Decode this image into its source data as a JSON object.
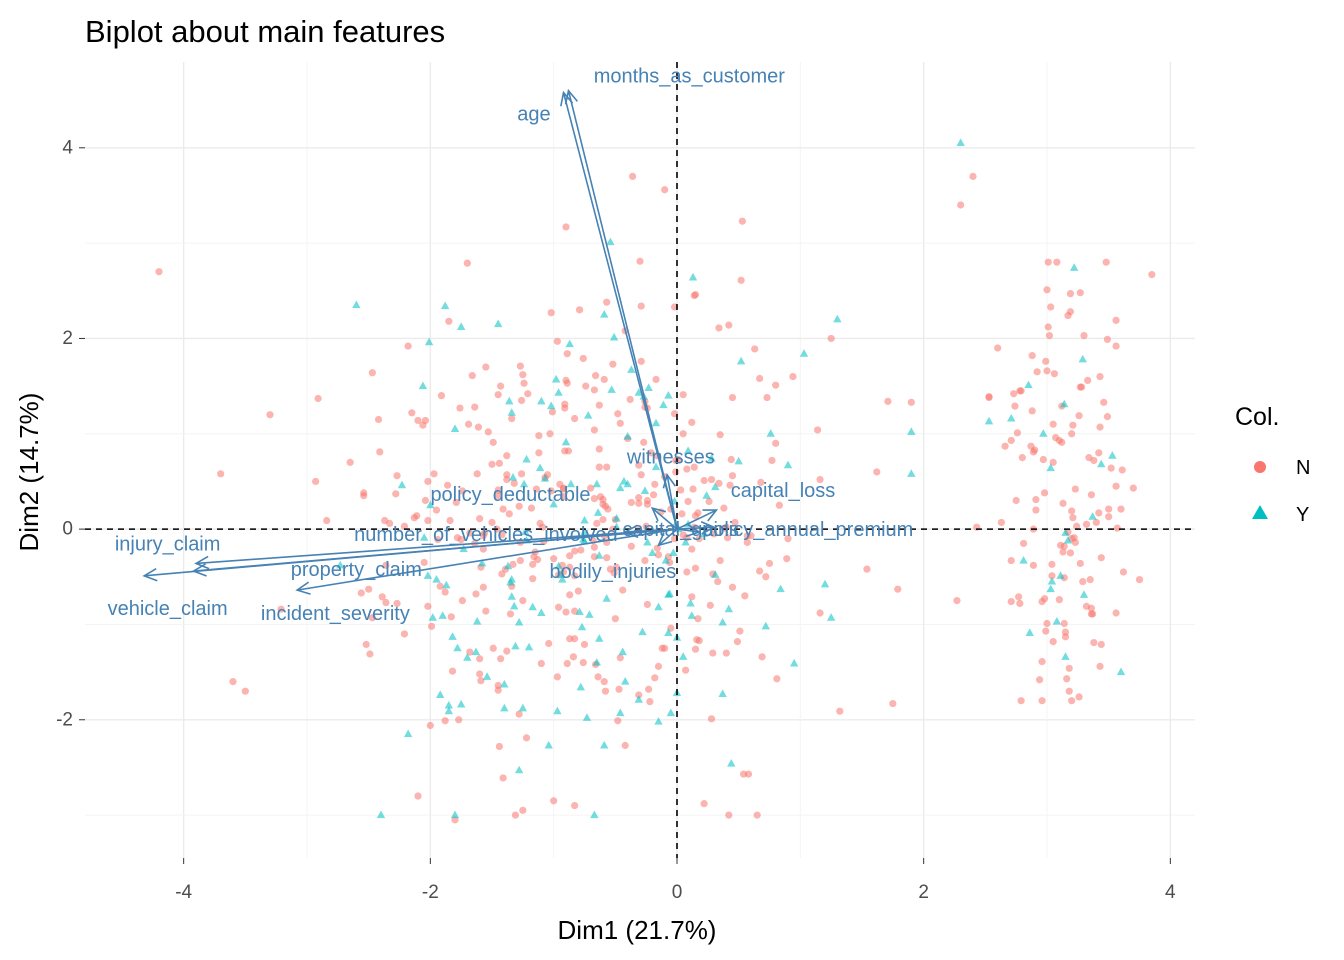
{
  "chart_data": {
    "type": "scatter",
    "subtype": "pca-biplot",
    "title": "Biplot about main features",
    "xlabel": "Dim1 (21.7%)",
    "ylabel": "Dim2 (14.7%)",
    "xlim": [
      -4.8,
      4.2
    ],
    "ylim": [
      -3.45,
      4.9
    ],
    "x_ticks": [
      -4,
      -2,
      0,
      2,
      4
    ],
    "y_ticks": [
      -2,
      0,
      2,
      4
    ],
    "x_tick_labels": [
      "-4",
      "-2",
      "0",
      "2",
      "4"
    ],
    "y_tick_labels": [
      "-2",
      "0",
      "2",
      "4"
    ],
    "grid": true,
    "reference_lines": {
      "x": 0,
      "y": 0,
      "style": "dashed"
    },
    "legend": {
      "title": "Col.",
      "placement": "right",
      "entries": [
        {
          "label": "N",
          "color": "#f8766d",
          "shape": "circle"
        },
        {
          "label": "Y",
          "color": "#00bfc4",
          "shape": "triangle"
        }
      ]
    },
    "variable_color": "#4682b4",
    "variables": [
      {
        "label": "months_as_customer",
        "x": -0.88,
        "y": 4.6,
        "label_x": 0.1,
        "label_y": 4.75
      },
      {
        "label": "age",
        "x": -0.92,
        "y": 4.58,
        "label_x": -1.16,
        "label_y": 4.35
      },
      {
        "label": "witnesses",
        "x": -0.08,
        "y": 0.57,
        "label_x": -0.05,
        "label_y": 0.75
      },
      {
        "label": "policy_deductable",
        "x": -0.2,
        "y": 0.22,
        "label_x": -1.35,
        "label_y": 0.36
      },
      {
        "label": "capital_loss",
        "x": 0.32,
        "y": 0.2,
        "label_x": 0.86,
        "label_y": 0.4
      },
      {
        "label": "number_of_vehicles_involved",
        "x": -0.42,
        "y": -0.03,
        "label_x": -1.55,
        "label_y": -0.06
      },
      {
        "label": "capital_gains",
        "x": 0.18,
        "y": -0.03,
        "label_x": 0.03,
        "label_y": -0.01
      },
      {
        "label": "policy_annual_premium",
        "x": 0.3,
        "y": 0.02,
        "label_x": 1.06,
        "label_y": -0.01
      },
      {
        "label": "bodily_injuries",
        "x": -0.15,
        "y": -0.17,
        "label_x": -0.52,
        "label_y": -0.45
      },
      {
        "label": "injury_claim",
        "x": -3.9,
        "y": -0.36,
        "label_x": -4.13,
        "label_y": -0.16
      },
      {
        "label": "property_claim",
        "x": -3.92,
        "y": -0.44,
        "label_x": -2.6,
        "label_y": -0.43
      },
      {
        "label": "vehicle_claim",
        "x": -4.32,
        "y": -0.49,
        "label_x": -4.13,
        "label_y": -0.84
      },
      {
        "label": "incident_severity",
        "x": -3.08,
        "y": -0.64,
        "label_x": -2.77,
        "label_y": -0.89
      }
    ],
    "series": [
      {
        "name": "N",
        "color": "#f8766d",
        "shape": "circle",
        "x": [],
        "y": []
      },
      {
        "name": "Y",
        "color": "#00bfc4",
        "shape": "triangle",
        "x": [],
        "y": []
      }
    ]
  }
}
